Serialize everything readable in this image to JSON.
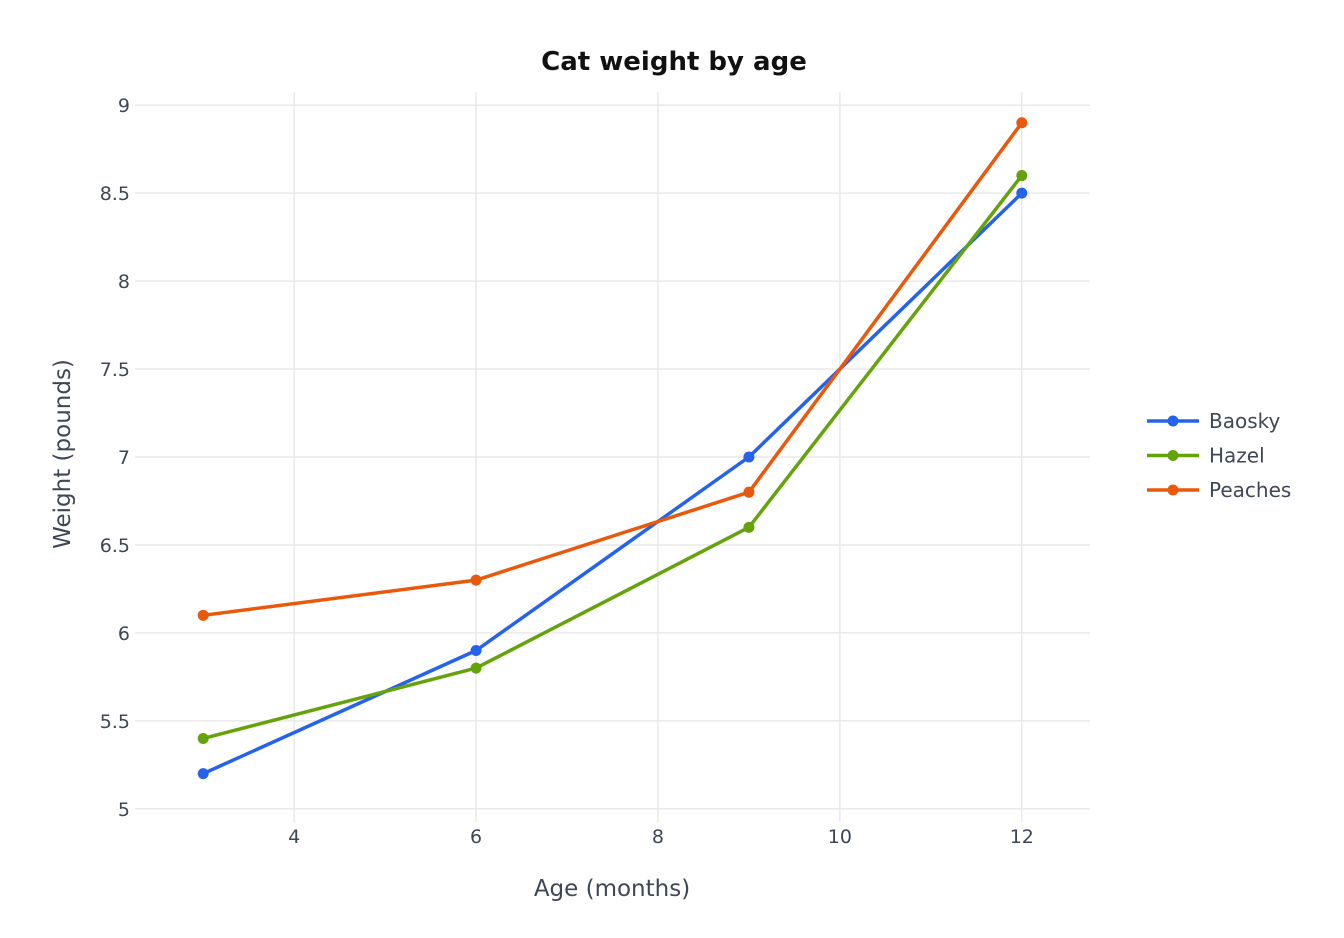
{
  "chart_data": {
    "type": "line",
    "title": "Cat weight by age",
    "xlabel": "Age (months)",
    "ylabel": "Weight (pounds)",
    "x": [
      3,
      6,
      9,
      12
    ],
    "xlim": [
      2.25,
      12.75
    ],
    "ylim": [
      4.925,
      9.075
    ],
    "xticks": [
      "4",
      "6",
      "8",
      "10",
      "12"
    ],
    "yticks": [
      "5",
      "5.5",
      "6",
      "6.5",
      "7",
      "7.5",
      "8",
      "8.5",
      "9"
    ],
    "grid": true,
    "legend_position": "right",
    "series": [
      {
        "name": "Baosky",
        "color": "#2563eb",
        "values": [
          5.2,
          5.9,
          7.0,
          8.5
        ]
      },
      {
        "name": "Hazel",
        "color": "#65a30d",
        "values": [
          5.4,
          5.8,
          6.6,
          8.6
        ]
      },
      {
        "name": "Peaches",
        "color": "#ea580c",
        "values": [
          6.1,
          6.3,
          6.8,
          8.9
        ]
      }
    ]
  }
}
